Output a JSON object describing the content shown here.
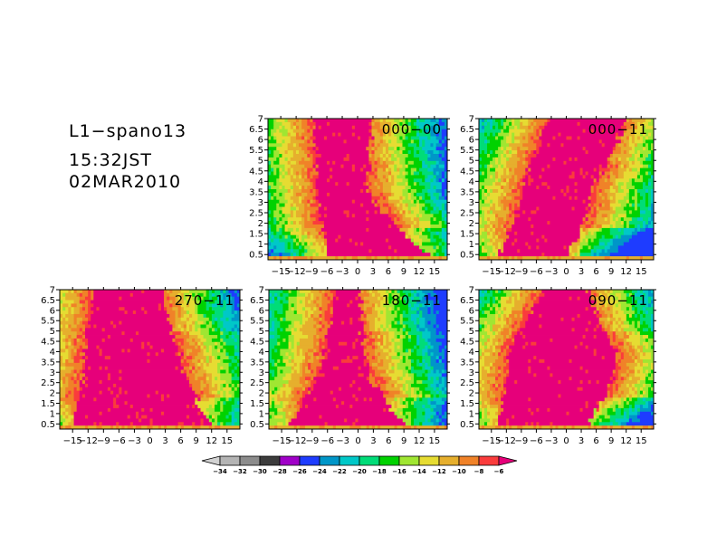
{
  "header": {
    "line1": "L1−spano13",
    "line2": "15:32JST",
    "line3": "02MAR2010"
  },
  "chart_data": {
    "type": "heatmap",
    "panels": [
      {
        "label": "000−00"
      },
      {
        "label": "000−11"
      },
      {
        "label": "270−11"
      },
      {
        "label": "180−11"
      },
      {
        "label": "090−11"
      }
    ],
    "x_ticks": [
      "−15",
      "−12",
      "−9",
      "−6",
      "−3",
      "0",
      "3",
      "6",
      "9",
      "12",
      "15"
    ],
    "x_tick_values": [
      -15,
      -12,
      -9,
      -6,
      -3,
      0,
      3,
      6,
      9,
      12,
      15
    ],
    "xlim": [
      -17.5,
      17.5
    ],
    "y_ticks": [
      "0.5",
      "1",
      "1.5",
      "2",
      "2.5",
      "3",
      "3.5",
      "4",
      "4.5",
      "5",
      "5.5",
      "6",
      "6.5",
      "7"
    ],
    "y_tick_values": [
      0.5,
      1,
      1.5,
      2,
      2.5,
      3,
      3.5,
      4,
      4.5,
      5,
      5.5,
      6,
      6.5,
      7
    ],
    "ylim": [
      0.25,
      7
    ],
    "colorbar": {
      "labels": [
        "−34",
        "−32",
        "−30",
        "−28",
        "−26",
        "−24",
        "−22",
        "−20",
        "−18",
        "−16",
        "−14",
        "−12",
        "−10",
        "−8",
        "−6"
      ],
      "levels": [
        -34,
        -32,
        -30,
        -28,
        -26,
        -24,
        -22,
        -20,
        -18,
        -16,
        -14,
        -12,
        -10,
        -8,
        -6
      ],
      "colors": [
        "#b4b4b4",
        "#8c8c8c",
        "#3c3c3c",
        "#a000c8",
        "#1e3cff",
        "#0096c8",
        "#00c8c8",
        "#00dc78",
        "#00d200",
        "#a0e632",
        "#e6dc32",
        "#e6af2d",
        "#f08228",
        "#fa3c3c",
        "#e6007a"
      ]
    }
  }
}
